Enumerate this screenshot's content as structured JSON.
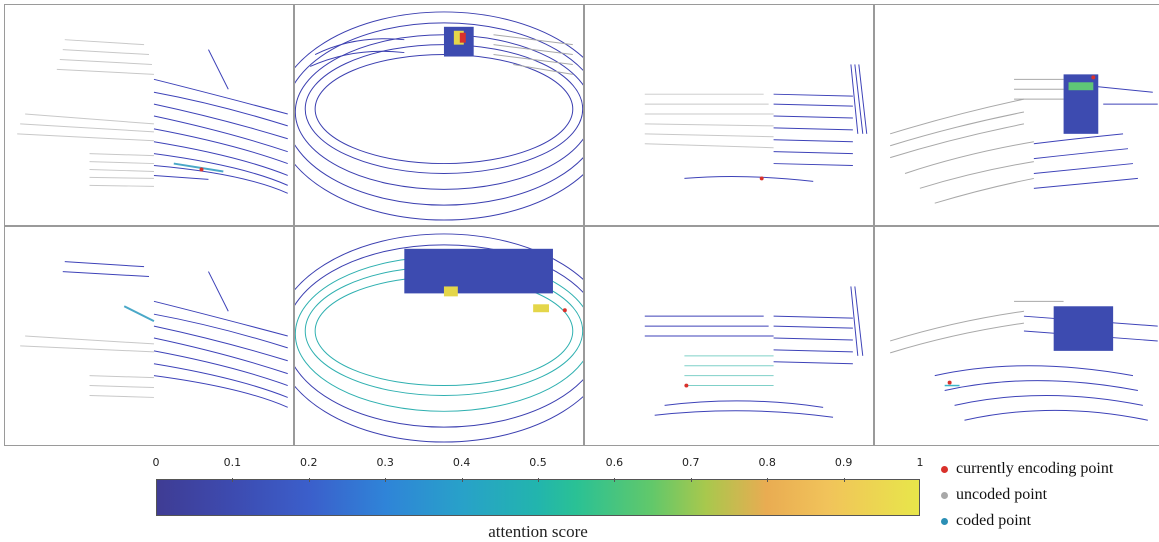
{
  "colorbar": {
    "ticks": [
      "0",
      "0.1",
      "0.2",
      "0.3",
      "0.4",
      "0.5",
      "0.6",
      "0.7",
      "0.8",
      "0.9",
      "1"
    ],
    "title": "attention score",
    "colors": [
      "#3f3c94",
      "#3b5fcb",
      "#28a1c9",
      "#2ac195",
      "#a8c84d",
      "#f1c35a",
      "#e8e64a"
    ]
  },
  "legend": [
    {
      "label": "currently encoding point",
      "color": "#d9312b"
    },
    {
      "label": "uncoded point",
      "color": "#a8a8a8"
    },
    {
      "label": "coded point",
      "color": "#2b8fb5"
    }
  ],
  "panels": [
    {
      "row": 1,
      "col": 1,
      "scene": "sparse-left"
    },
    {
      "row": 1,
      "col": 2,
      "scene": "dense-ring"
    },
    {
      "row": 1,
      "col": 3,
      "scene": "corridor"
    },
    {
      "row": 1,
      "col": 4,
      "scene": "street"
    },
    {
      "row": 2,
      "col": 1,
      "scene": "sparse-left"
    },
    {
      "row": 2,
      "col": 2,
      "scene": "dense-ring"
    },
    {
      "row": 2,
      "col": 3,
      "scene": "corridor"
    },
    {
      "row": 2,
      "col": 4,
      "scene": "street"
    }
  ]
}
